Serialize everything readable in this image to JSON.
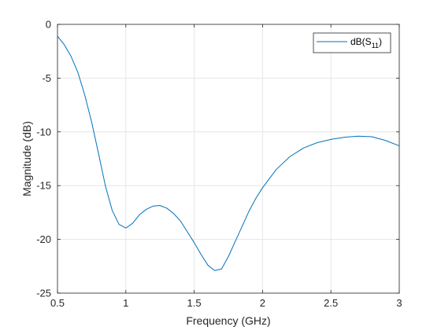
{
  "chart_data": {
    "type": "line",
    "title": "",
    "xlabel": "Frequency (GHz)",
    "ylabel": "Magnitude (dB)",
    "xlim": [
      0.5,
      3
    ],
    "ylim": [
      -25,
      0
    ],
    "xticks": [
      0.5,
      1,
      1.5,
      2,
      2.5,
      3
    ],
    "yticks": [
      -25,
      -20,
      -15,
      -10,
      -5,
      0
    ],
    "xtick_labels": [
      "0.5",
      "1",
      "1.5",
      "2",
      "2.5",
      "3"
    ],
    "ytick_labels": [
      "-25",
      "-20",
      "-15",
      "-10",
      "-5",
      "0"
    ],
    "grid": true,
    "legend_position": "top-right",
    "series": [
      {
        "name": "dB(S11)",
        "name_base": "dB(S",
        "name_subscript": "11",
        "name_suffix": ")",
        "color": "#0072bd",
        "x": [
          0.5,
          0.55,
          0.6,
          0.65,
          0.7,
          0.75,
          0.8,
          0.85,
          0.9,
          0.95,
          1.0,
          1.05,
          1.1,
          1.15,
          1.2,
          1.25,
          1.3,
          1.35,
          1.4,
          1.45,
          1.5,
          1.55,
          1.6,
          1.65,
          1.7,
          1.75,
          1.8,
          1.85,
          1.9,
          1.95,
          2.0,
          2.1,
          2.2,
          2.3,
          2.4,
          2.5,
          2.6,
          2.7,
          2.8,
          2.9,
          3.0
        ],
        "y": [
          -1.1,
          -1.9,
          -3.0,
          -4.5,
          -6.6,
          -9.1,
          -12.0,
          -15.0,
          -17.3,
          -18.6,
          -18.95,
          -18.5,
          -17.7,
          -17.2,
          -16.9,
          -16.85,
          -17.1,
          -17.6,
          -18.3,
          -19.3,
          -20.3,
          -21.4,
          -22.4,
          -22.9,
          -22.75,
          -21.6,
          -20.2,
          -18.8,
          -17.4,
          -16.2,
          -15.2,
          -13.5,
          -12.3,
          -11.5,
          -11.0,
          -10.7,
          -10.5,
          -10.4,
          -10.45,
          -10.8,
          -11.3
        ]
      }
    ]
  }
}
